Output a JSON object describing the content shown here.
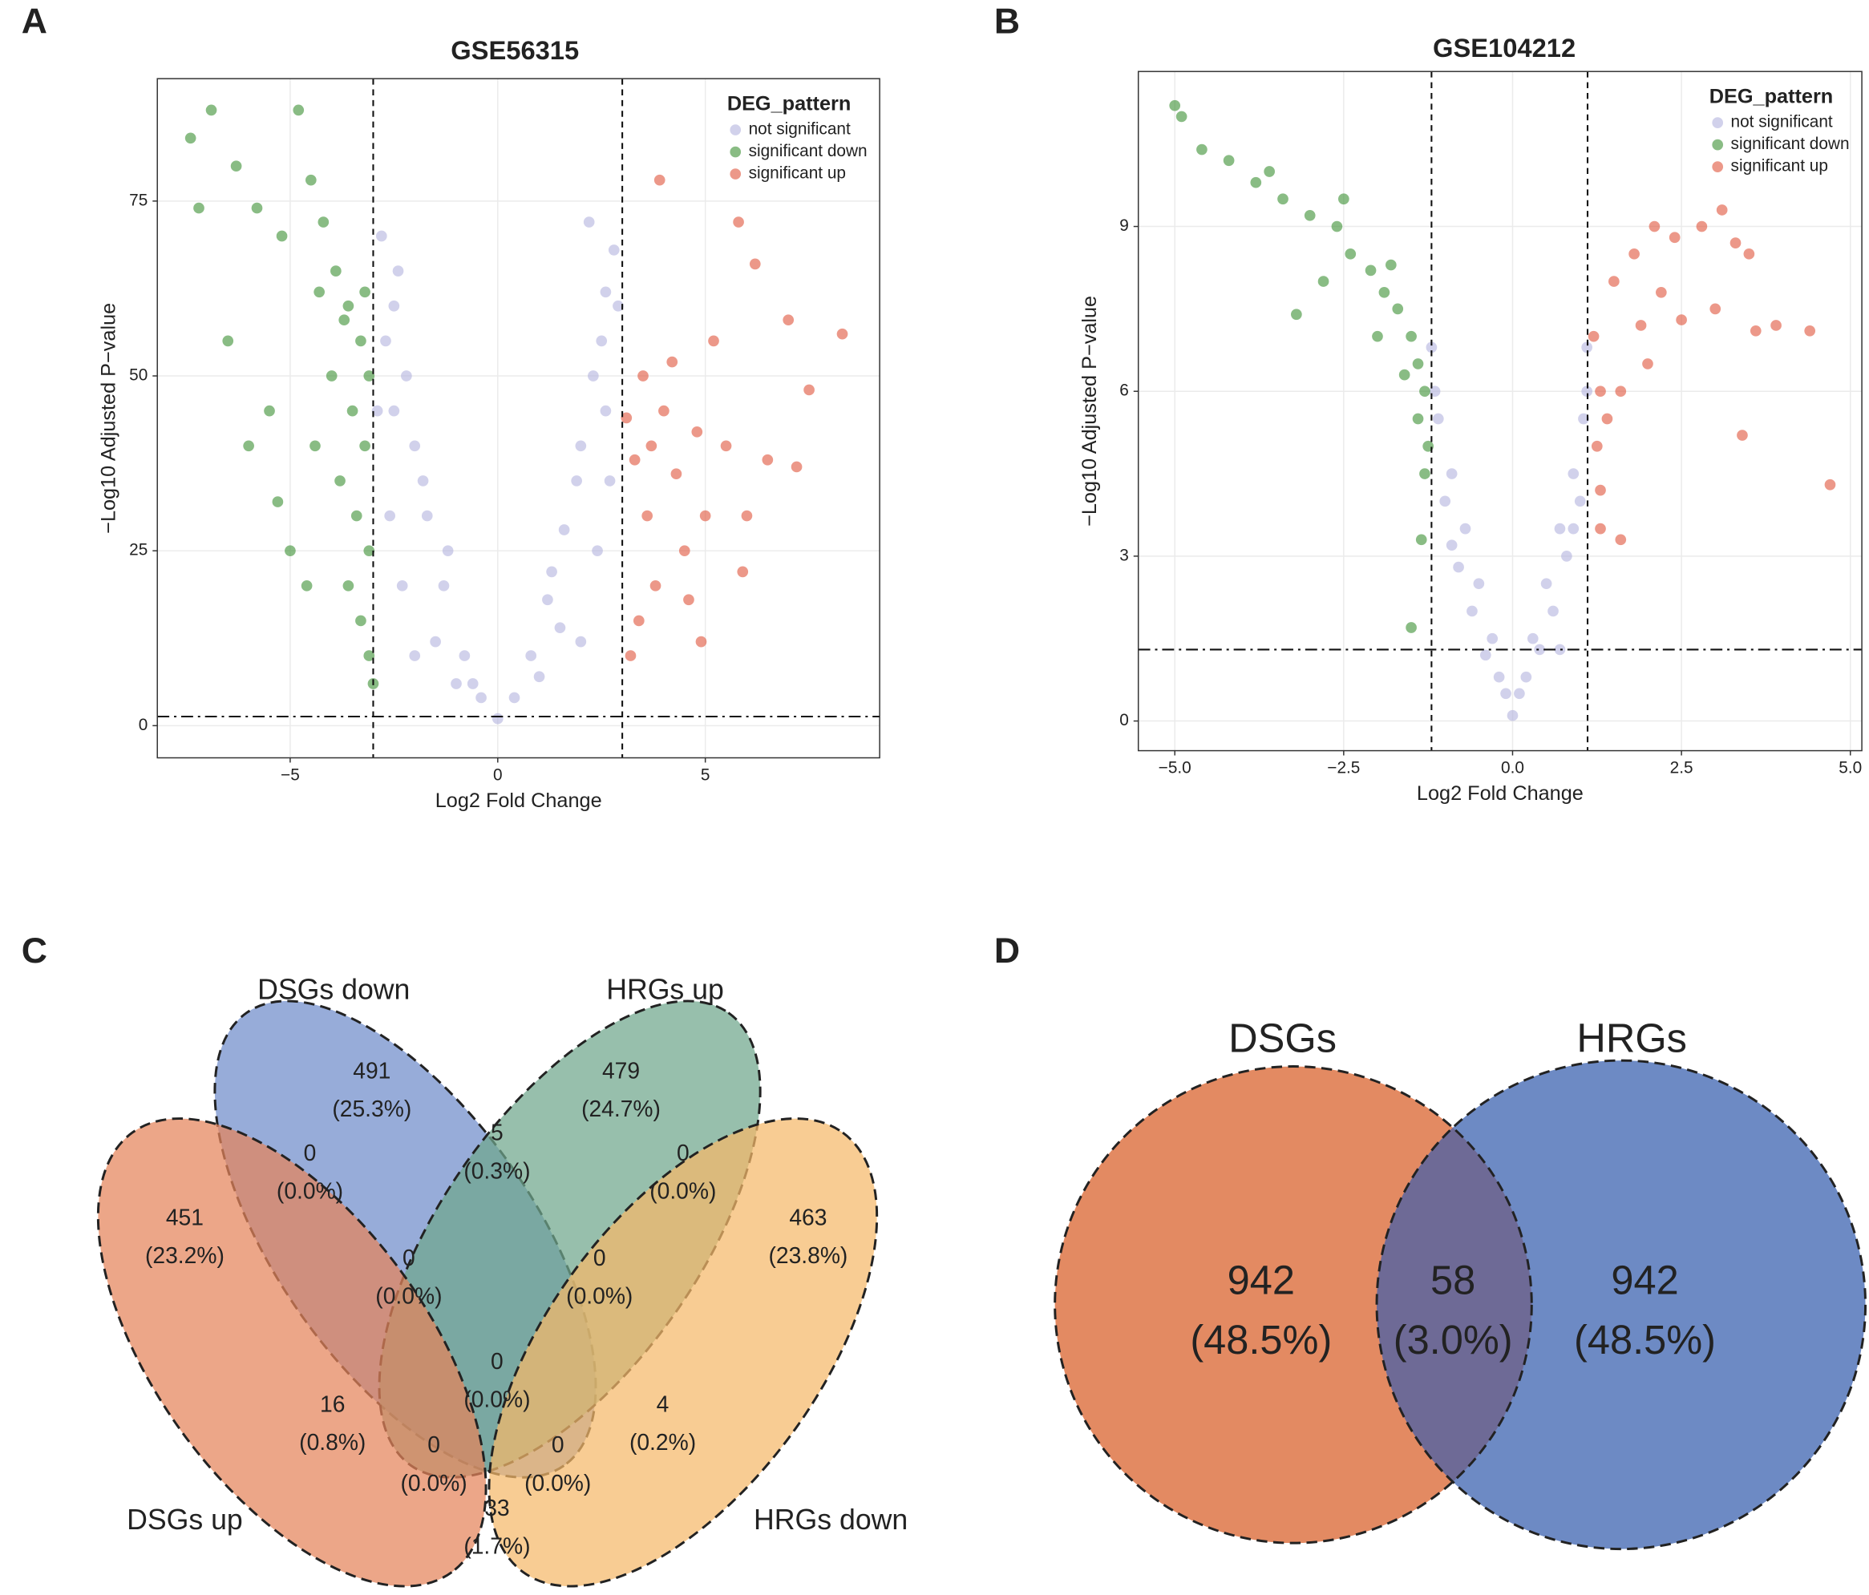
{
  "chart_data": [
    {
      "type": "scatter",
      "panel": "A",
      "title": "GSE56315",
      "x_label": "Log2 Fold Change",
      "y_label": "−Log10 Adjusted P−value",
      "xlim": [
        -8.2,
        9.2
      ],
      "ylim": [
        -4.6,
        92.5
      ],
      "xticks": [
        {
          "value": -5,
          "label": "−5"
        },
        0,
        5
      ],
      "yticks": [
        0,
        25,
        50,
        75
      ],
      "grid": true,
      "vlines": [
        -3,
        3
      ],
      "hline": 1.3,
      "legend_title": "DEG_pattern",
      "legend": "top-right",
      "series": [
        {
          "name": "not significant",
          "color": "#b3b3dd",
          "x": [
            -2.8,
            -2.5,
            -2.2,
            -2.0,
            -1.7,
            -1.3,
            -0.8,
            -0.4,
            0,
            0.4,
            0.8,
            1.2,
            1.6,
            2.0,
            2.3,
            2.6,
            2.8,
            -2.9,
            -2.6,
            -2.3,
            2.4,
            2.7,
            -1.5,
            1.5,
            -2.0,
            2.0,
            -2.7,
            2.5,
            2.2,
            -1.0,
            1.0,
            -2.5,
            2.6,
            -1.8,
            1.9,
            -2.4,
            2.9,
            -1.2,
            1.3,
            -0.6
          ],
          "values": [
            70,
            60,
            50,
            40,
            30,
            20,
            10,
            4,
            1,
            4,
            10,
            18,
            28,
            40,
            50,
            62,
            68,
            45,
            30,
            20,
            25,
            35,
            12,
            14,
            10,
            12,
            55,
            55,
            72,
            6,
            7,
            45,
            45,
            35,
            35,
            65,
            60,
            25,
            22,
            6
          ]
        },
        {
          "name": "significant down",
          "color": "#3a8f32",
          "x": [
            -7.4,
            -6.9,
            -6.3,
            -5.8,
            -5.2,
            -4.8,
            -4.5,
            -4.2,
            -3.9,
            -3.6,
            -3.3,
            -3.1,
            -4.0,
            -3.5,
            -3.2,
            -3.8,
            -3.4,
            -3.1,
            -5.0,
            -4.6,
            -3.3,
            -3.1,
            -3.0,
            -7.2,
            -6.5,
            -5.5,
            -4.4,
            -3.7,
            -3.2,
            -4.3,
            -3.6,
            -5.3,
            -6.0
          ],
          "values": [
            84,
            88,
            80,
            74,
            70,
            88,
            78,
            72,
            65,
            60,
            55,
            50,
            50,
            45,
            40,
            35,
            30,
            25,
            25,
            20,
            15,
            10,
            6,
            74,
            55,
            45,
            40,
            58,
            62,
            62,
            20,
            32,
            40
          ]
        },
        {
          "name": "significant up",
          "color": "#e0533a",
          "x": [
            3.3,
            3.6,
            4.0,
            4.3,
            4.5,
            3.8,
            3.4,
            3.2,
            5.2,
            5.8,
            6.2,
            7.0,
            7.5,
            8.3,
            4.8,
            5.5,
            6.5,
            3.9,
            3.5,
            4.2,
            5.0,
            6.0,
            4.6,
            3.1,
            3.7,
            5.9,
            7.2,
            4.9
          ],
          "values": [
            38,
            30,
            45,
            36,
            25,
            20,
            15,
            10,
            55,
            72,
            66,
            58,
            48,
            56,
            42,
            40,
            38,
            78,
            50,
            52,
            30,
            30,
            18,
            44,
            40,
            22,
            37,
            12
          ]
        }
      ]
    },
    {
      "type": "scatter",
      "panel": "B",
      "title": "GSE104212",
      "x_label": "Log2 Fold Change",
      "y_label": "−Log10 Adjusted P−value",
      "xlim": [
        -5.54,
        5.17
      ],
      "ylim": [
        -0.54,
        11.82
      ],
      "xticks": [
        {
          "value": -5,
          "label": "−5.0"
        },
        {
          "value": -2.5,
          "label": "−2.5"
        },
        {
          "value": 0,
          "label": "0.0"
        },
        2.5,
        {
          "value": 5,
          "label": "5.0"
        }
      ],
      "yticks": [
        0,
        3,
        6,
        9
      ],
      "grid": true,
      "vlines": [
        -1.2,
        1.11
      ],
      "hline": 1.3,
      "legend_title": "DEG_pattern",
      "legend": "top-right",
      "series": [
        {
          "name": "not significant",
          "color": "#b3b3dd",
          "x": [
            -1.2,
            -1.1,
            -0.9,
            -0.7,
            -0.5,
            -0.3,
            -0.1,
            0,
            0.1,
            0.3,
            0.5,
            0.7,
            0.9,
            1.05,
            1.1,
            -1.0,
            -0.8,
            -0.6,
            0.6,
            0.8,
            1.0,
            -1.15,
            1.1,
            -0.2,
            0.2,
            -0.4,
            0.4,
            0.7,
            -0.9,
            0.9
          ],
          "values": [
            6.8,
            5.5,
            4.5,
            3.5,
            2.5,
            1.5,
            0.5,
            0.1,
            0.5,
            1.5,
            2.5,
            3.5,
            4.5,
            5.5,
            6.8,
            4.0,
            2.8,
            2.0,
            2.0,
            3.0,
            4.0,
            6.0,
            6.0,
            0.8,
            0.8,
            1.2,
            1.3,
            1.3,
            3.2,
            3.5
          ]
        },
        {
          "name": "significant down",
          "color": "#3a8f32",
          "x": [
            -5.0,
            -4.6,
            -4.2,
            -3.8,
            -3.4,
            -3.0,
            -2.6,
            -2.4,
            -2.1,
            -1.9,
            -1.7,
            -1.5,
            -1.4,
            -1.3,
            -1.25,
            -1.3,
            -1.35,
            -1.5,
            -2.8,
            -3.2,
            -2.0,
            -1.6,
            -1.8,
            -2.5,
            -1.4,
            -4.9,
            -3.6
          ],
          "values": [
            11.2,
            10.4,
            10.2,
            9.8,
            9.5,
            9.2,
            9.0,
            8.5,
            8.2,
            7.8,
            7.5,
            7.0,
            6.5,
            6.0,
            5.0,
            4.5,
            3.3,
            1.7,
            8.0,
            7.4,
            7.0,
            6.3,
            8.3,
            9.5,
            5.5,
            11.0,
            10.0
          ]
        },
        {
          "name": "significant up",
          "color": "#e0533a",
          "x": [
            1.2,
            1.3,
            1.25,
            1.3,
            1.3,
            1.5,
            1.8,
            2.1,
            2.4,
            2.8,
            3.1,
            3.3,
            3.5,
            3.0,
            2.5,
            2.0,
            1.6,
            1.4,
            3.6,
            4.4,
            3.4,
            4.7,
            1.6,
            2.2,
            1.9,
            3.9
          ],
          "values": [
            7.0,
            6.0,
            5.0,
            4.2,
            3.5,
            8.0,
            8.5,
            9.0,
            8.8,
            9.0,
            9.3,
            8.7,
            8.5,
            7.5,
            7.3,
            6.5,
            6.0,
            5.5,
            7.1,
            7.1,
            5.2,
            4.3,
            3.3,
            7.8,
            7.2,
            7.2
          ]
        }
      ]
    },
    {
      "type": "venn",
      "panel": "C",
      "sets": [
        "DSGs down",
        "HRGs up",
        "DSGs up",
        "HRGs down"
      ],
      "colors": [
        "#6f8cca",
        "#6fa68c",
        "#e5845a",
        "#f5b86a"
      ],
      "values": [
        491,
        479,
        451,
        463,
        0,
        5,
        0,
        0,
        0,
        0,
        16,
        4,
        0,
        0,
        33
      ],
      "percents": [
        25.3,
        24.7,
        23.2,
        23.8,
        0.0,
        0.3,
        0.0,
        0.0,
        0.0,
        0.0,
        0.8,
        0.2,
        0.0,
        0.0,
        1.7
      ],
      "percent_labels": [
        "(25.3%)",
        "(24.7%)",
        "(23.2%)",
        "(23.8%)",
        "(0.0%)",
        "(0.3%)",
        "(0.0%)",
        "(0.0%)",
        "(0.0%)",
        "(0.0%)",
        "(0.8%)",
        "(0.2%)",
        "(0.0%)",
        "(0.0%)",
        "(1.7%)"
      ]
    },
    {
      "type": "venn2",
      "panel": "D",
      "sets": [
        "DSGs",
        "HRGs"
      ],
      "colors": [
        "#e38a62",
        "#6d8ac4"
      ],
      "overlap_color": "#6e6a96",
      "values": [
        942,
        58,
        942
      ],
      "percents": [
        48.5,
        3.0,
        48.5
      ],
      "percent_labels": [
        "(48.5%)",
        "(3.0%)",
        "(48.5%)"
      ]
    }
  ]
}
